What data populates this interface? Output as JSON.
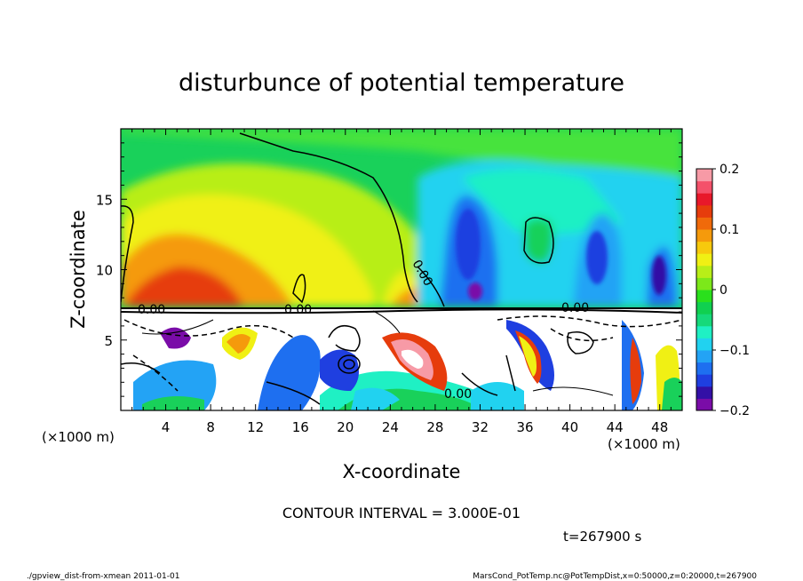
{
  "chart_data": {
    "type": "heatmap",
    "title": "disturbunce of potential temperature",
    "xlabel": "X-coordinate",
    "ylabel": "Z-coordinate",
    "x_unit_left": "(×1000 m)",
    "x_unit_right": "(×1000 m)",
    "xlim": [
      0,
      50
    ],
    "ylim": [
      0,
      20
    ],
    "x_ticks": [
      "4",
      "8",
      "12",
      "16",
      "20",
      "24",
      "28",
      "32",
      "36",
      "40",
      "44",
      "48"
    ],
    "y_ticks": [
      "5",
      "10",
      "15"
    ],
    "colorbar": {
      "range": [
        -0.2,
        0.2
      ],
      "ticks": [
        "0.2",
        "0.1",
        "0",
        "−0.1",
        "−0.2"
      ],
      "colors": [
        "#7a0ca8",
        "#3310a6",
        "#1f3fe0",
        "#1e6ff0",
        "#23a3f5",
        "#21d2f0",
        "#1ff0c4",
        "#16d97a",
        "#10d050",
        "#2ae01c",
        "#7ce81a",
        "#b8ee18",
        "#f0f014",
        "#f7c90d",
        "#f59a0c",
        "#f06a0a",
        "#e63c0c",
        "#e8182a",
        "#f4516a",
        "#f79aa6"
      ],
      "white_color": "#ffffff"
    },
    "contour_interval": "CONTOUR INTERVAL = 3.000E-01",
    "contour_labels": [
      "0.00",
      "0.00",
      "0.00",
      "0.00",
      "0.00"
    ],
    "time_label": "t=267900 s",
    "footer_left": "./gpview_dist-from-xmean  2011-01-01",
    "footer_right": "MarsCond_PotTemp.nc@PotTempDist,x=0:50000,z=0:20000,t=267900"
  }
}
